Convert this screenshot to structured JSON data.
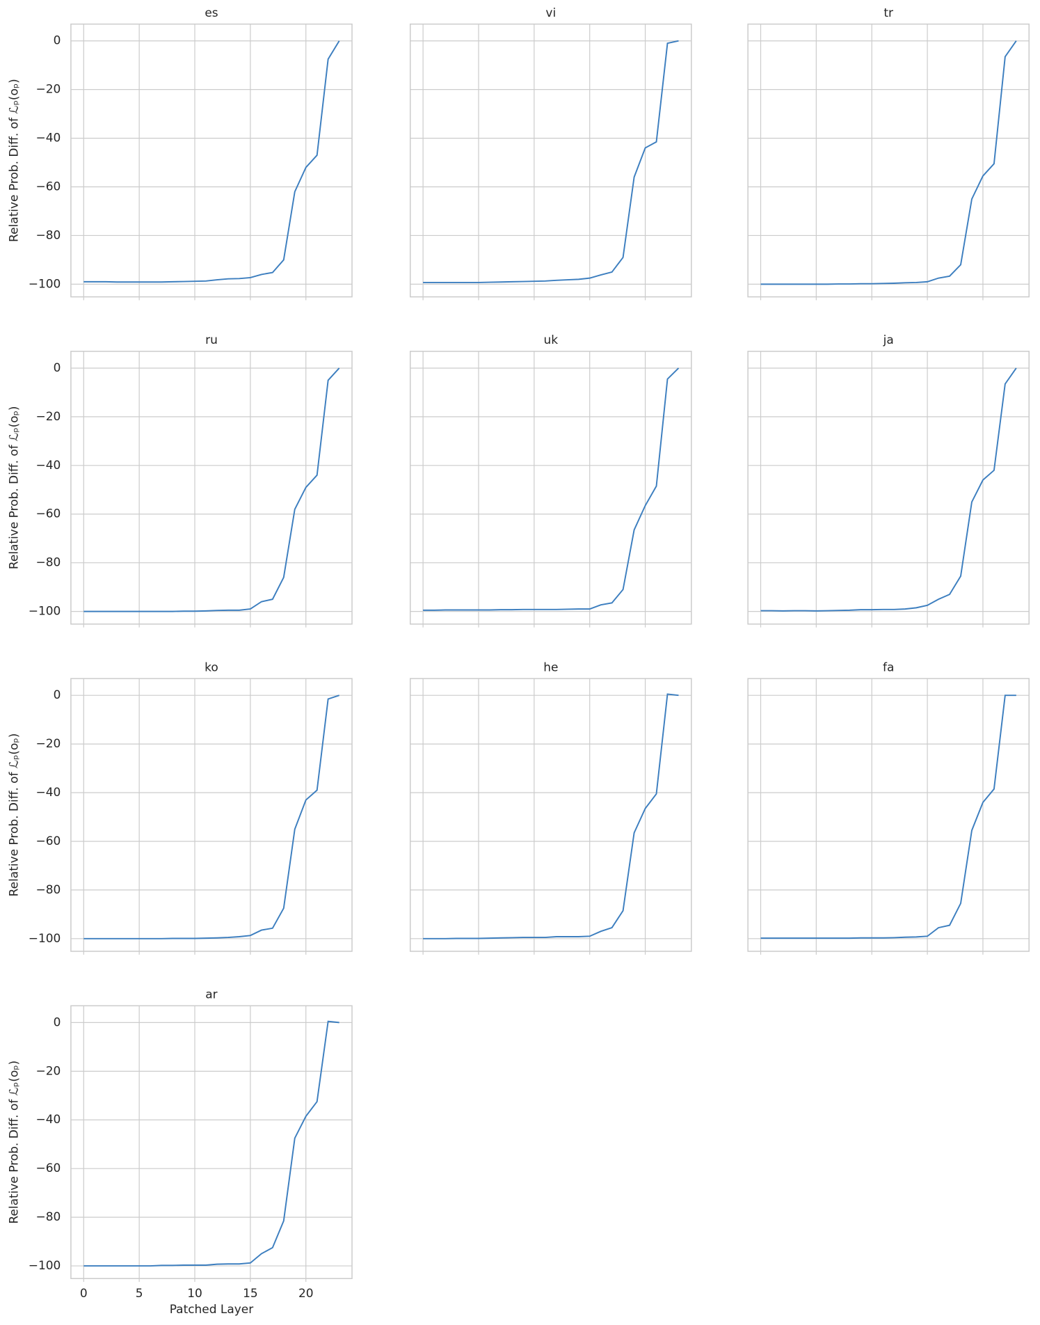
{
  "chart_data": [
    {
      "type": "line",
      "title": "es",
      "ylabel": "Relative Prob. Diff. of ℒₚ(oₚ)",
      "color": "#3c7ebf",
      "grid": true,
      "x": [
        0,
        1,
        2,
        3,
        4,
        5,
        6,
        7,
        8,
        9,
        10,
        11,
        12,
        13,
        14,
        15,
        16,
        17,
        18,
        19,
        20,
        21,
        22,
        23
      ],
      "values": [
        -99,
        -99,
        -99,
        -99.1,
        -99.1,
        -99.1,
        -99.1,
        -99.1,
        -99,
        -98.9,
        -98.8,
        -98.7,
        -98.2,
        -97.8,
        -97.7,
        -97.3,
        -96,
        -95.2,
        -90,
        -62,
        -52,
        -47,
        -7.5,
        0
      ],
      "xlim": [
        -1.15,
        24.15
      ],
      "ylim": [
        -105.2,
        6.9
      ],
      "xticks": [
        0,
        5,
        10,
        15,
        20
      ],
      "yticks": [
        {
          "value": 0,
          "label": "0"
        },
        {
          "value": -20,
          "label": "−20"
        },
        {
          "value": -40,
          "label": "−40"
        },
        {
          "value": -60,
          "label": "−60"
        },
        {
          "value": -80,
          "label": "−80"
        },
        {
          "value": -100,
          "label": "−100"
        }
      ]
    },
    {
      "type": "line",
      "title": "vi",
      "color": "#3c7ebf",
      "grid": true,
      "x": [
        0,
        1,
        2,
        3,
        4,
        5,
        6,
        7,
        8,
        9,
        10,
        11,
        12,
        13,
        14,
        15,
        16,
        17,
        18,
        19,
        20,
        21,
        22,
        23
      ],
      "values": [
        -99.3,
        -99.3,
        -99.3,
        -99.3,
        -99.3,
        -99.3,
        -99.2,
        -99.1,
        -99,
        -98.9,
        -98.8,
        -98.7,
        -98.4,
        -98.2,
        -98,
        -97.5,
        -96.2,
        -95,
        -89,
        -56,
        -44,
        -41.5,
        -1,
        0
      ],
      "xlim": [
        -1.15,
        24.15
      ],
      "ylim": [
        -105.2,
        6.9
      ],
      "xticks": [
        0,
        5,
        10,
        15,
        20
      ],
      "yticks": [
        {
          "value": 0,
          "label": "0"
        },
        {
          "value": -20,
          "label": "−20"
        },
        {
          "value": -40,
          "label": "−40"
        },
        {
          "value": -60,
          "label": "−60"
        },
        {
          "value": -80,
          "label": "−80"
        },
        {
          "value": -100,
          "label": "−100"
        }
      ]
    },
    {
      "type": "line",
      "title": "tr",
      "color": "#3c7ebf",
      "grid": true,
      "x": [
        0,
        1,
        2,
        3,
        4,
        5,
        6,
        7,
        8,
        9,
        10,
        11,
        12,
        13,
        14,
        15,
        16,
        17,
        18,
        19,
        20,
        21,
        22,
        23
      ],
      "values": [
        -100,
        -100,
        -100,
        -100,
        -100,
        -100,
        -100,
        -99.9,
        -99.9,
        -99.8,
        -99.8,
        -99.7,
        -99.6,
        -99.4,
        -99.3,
        -99,
        -97.5,
        -96.7,
        -92,
        -65,
        -55.5,
        -50.5,
        -6.5,
        0
      ],
      "xlim": [
        -1.15,
        24.15
      ],
      "ylim": [
        -105.2,
        6.9
      ],
      "xticks": [
        0,
        5,
        10,
        15,
        20
      ],
      "yticks": [
        {
          "value": 0,
          "label": "0"
        },
        {
          "value": -20,
          "label": "−20"
        },
        {
          "value": -40,
          "label": "−40"
        },
        {
          "value": -60,
          "label": "−60"
        },
        {
          "value": -80,
          "label": "−80"
        },
        {
          "value": -100,
          "label": "−100"
        }
      ]
    },
    {
      "type": "line",
      "title": "ru",
      "ylabel": "Relative Prob. Diff. of ℒₚ(oₚ)",
      "color": "#3c7ebf",
      "grid": true,
      "x": [
        0,
        1,
        2,
        3,
        4,
        5,
        6,
        7,
        8,
        9,
        10,
        11,
        12,
        13,
        14,
        15,
        16,
        17,
        18,
        19,
        20,
        21,
        22,
        23
      ],
      "values": [
        -100,
        -100,
        -100,
        -100,
        -100,
        -100,
        -100,
        -100,
        -100,
        -99.9,
        -99.9,
        -99.8,
        -99.6,
        -99.5,
        -99.5,
        -99,
        -96,
        -95,
        -86,
        -58,
        -49,
        -44,
        -5,
        0
      ],
      "xlim": [
        -1.15,
        24.15
      ],
      "ylim": [
        -105.2,
        6.9
      ],
      "xticks": [
        0,
        5,
        10,
        15,
        20
      ],
      "yticks": [
        {
          "value": 0,
          "label": "0"
        },
        {
          "value": -20,
          "label": "−20"
        },
        {
          "value": -40,
          "label": "−40"
        },
        {
          "value": -60,
          "label": "−60"
        },
        {
          "value": -80,
          "label": "−80"
        },
        {
          "value": -100,
          "label": "−100"
        }
      ]
    },
    {
      "type": "line",
      "title": "uk",
      "color": "#3c7ebf",
      "grid": true,
      "x": [
        0,
        1,
        2,
        3,
        4,
        5,
        6,
        7,
        8,
        9,
        10,
        11,
        12,
        13,
        14,
        15,
        16,
        17,
        18,
        19,
        20,
        21,
        22,
        23
      ],
      "values": [
        -99.5,
        -99.5,
        -99.4,
        -99.4,
        -99.4,
        -99.4,
        -99.4,
        -99.3,
        -99.3,
        -99.2,
        -99.2,
        -99.2,
        -99.2,
        -99.1,
        -99,
        -99,
        -97.3,
        -96.5,
        -91,
        -66.5,
        -56.5,
        -48.5,
        -4.5,
        0
      ],
      "xlim": [
        -1.15,
        24.15
      ],
      "ylim": [
        -105.2,
        6.9
      ],
      "xticks": [
        0,
        5,
        10,
        15,
        20
      ],
      "yticks": [
        {
          "value": 0,
          "label": "0"
        },
        {
          "value": -20,
          "label": "−20"
        },
        {
          "value": -40,
          "label": "−40"
        },
        {
          "value": -60,
          "label": "−60"
        },
        {
          "value": -80,
          "label": "−80"
        },
        {
          "value": -100,
          "label": "−100"
        }
      ]
    },
    {
      "type": "line",
      "title": "ja",
      "color": "#3c7ebf",
      "grid": true,
      "x": [
        0,
        1,
        2,
        3,
        4,
        5,
        6,
        7,
        8,
        9,
        10,
        11,
        12,
        13,
        14,
        15,
        16,
        17,
        18,
        19,
        20,
        21,
        22,
        23
      ],
      "values": [
        -99.7,
        -99.7,
        -99.8,
        -99.7,
        -99.7,
        -99.8,
        -99.7,
        -99.6,
        -99.5,
        -99.3,
        -99.3,
        -99.2,
        -99.2,
        -99,
        -98.5,
        -97.5,
        -95,
        -93,
        -85.5,
        -55,
        -46,
        -42,
        -6.5,
        0
      ],
      "xlim": [
        -1.15,
        24.15
      ],
      "ylim": [
        -105.2,
        6.9
      ],
      "xticks": [
        0,
        5,
        10,
        15,
        20
      ],
      "yticks": [
        {
          "value": 0,
          "label": "0"
        },
        {
          "value": -20,
          "label": "−20"
        },
        {
          "value": -40,
          "label": "−40"
        },
        {
          "value": -60,
          "label": "−60"
        },
        {
          "value": -80,
          "label": "−80"
        },
        {
          "value": -100,
          "label": "−100"
        }
      ]
    },
    {
      "type": "line",
      "title": "ko",
      "ylabel": "Relative Prob. Diff. of ℒₚ(oₚ)",
      "color": "#3c7ebf",
      "grid": true,
      "x": [
        0,
        1,
        2,
        3,
        4,
        5,
        6,
        7,
        8,
        9,
        10,
        11,
        12,
        13,
        14,
        15,
        16,
        17,
        18,
        19,
        20,
        21,
        22,
        23
      ],
      "values": [
        -100,
        -100,
        -100,
        -100,
        -100,
        -100,
        -100,
        -100,
        -99.9,
        -99.9,
        -99.9,
        -99.8,
        -99.7,
        -99.5,
        -99.2,
        -98.7,
        -96.5,
        -95.7,
        -87.5,
        -55,
        -43,
        -39,
        -1.5,
        0
      ],
      "xlim": [
        -1.15,
        24.15
      ],
      "ylim": [
        -105.2,
        6.9
      ],
      "xticks": [
        0,
        5,
        10,
        15,
        20
      ],
      "yticks": [
        {
          "value": 0,
          "label": "0"
        },
        {
          "value": -20,
          "label": "−20"
        },
        {
          "value": -40,
          "label": "−40"
        },
        {
          "value": -60,
          "label": "−60"
        },
        {
          "value": -80,
          "label": "−80"
        },
        {
          "value": -100,
          "label": "−100"
        }
      ]
    },
    {
      "type": "line",
      "title": "he",
      "color": "#3c7ebf",
      "grid": true,
      "x": [
        0,
        1,
        2,
        3,
        4,
        5,
        6,
        7,
        8,
        9,
        10,
        11,
        12,
        13,
        14,
        15,
        16,
        17,
        18,
        19,
        20,
        21,
        22,
        23
      ],
      "values": [
        -100,
        -100,
        -100,
        -99.9,
        -99.9,
        -99.9,
        -99.8,
        -99.7,
        -99.6,
        -99.5,
        -99.5,
        -99.5,
        -99.2,
        -99.2,
        -99.2,
        -99,
        -97,
        -95.5,
        -88.5,
        -56.5,
        -46.5,
        -40.5,
        0.5,
        0
      ],
      "xlim": [
        -1.15,
        24.15
      ],
      "ylim": [
        -105.2,
        6.9
      ],
      "xticks": [
        0,
        5,
        10,
        15,
        20
      ],
      "yticks": [
        {
          "value": 0,
          "label": "0"
        },
        {
          "value": -20,
          "label": "−20"
        },
        {
          "value": -40,
          "label": "−40"
        },
        {
          "value": -60,
          "label": "−60"
        },
        {
          "value": -80,
          "label": "−80"
        },
        {
          "value": -100,
          "label": "−100"
        }
      ]
    },
    {
      "type": "line",
      "title": "fa",
      "color": "#3c7ebf",
      "grid": true,
      "x": [
        0,
        1,
        2,
        3,
        4,
        5,
        6,
        7,
        8,
        9,
        10,
        11,
        12,
        13,
        14,
        15,
        16,
        17,
        18,
        19,
        20,
        21,
        22,
        23
      ],
      "values": [
        -99.8,
        -99.8,
        -99.8,
        -99.8,
        -99.8,
        -99.8,
        -99.8,
        -99.8,
        -99.8,
        -99.7,
        -99.7,
        -99.7,
        -99.6,
        -99.4,
        -99.3,
        -99,
        -95.5,
        -94.5,
        -85.5,
        -55.5,
        -44,
        -38.5,
        0,
        0
      ],
      "xlim": [
        -1.15,
        24.15
      ],
      "ylim": [
        -105.2,
        6.9
      ],
      "xticks": [
        0,
        5,
        10,
        15,
        20
      ],
      "yticks": [
        {
          "value": 0,
          "label": "0"
        },
        {
          "value": -20,
          "label": "−20"
        },
        {
          "value": -40,
          "label": "−40"
        },
        {
          "value": -60,
          "label": "−60"
        },
        {
          "value": -80,
          "label": "−80"
        },
        {
          "value": -100,
          "label": "−100"
        }
      ]
    },
    {
      "type": "line",
      "title": "ar",
      "ylabel": "Relative Prob. Diff. of ℒₚ(oₚ)",
      "xlabel": "Patched Layer",
      "color": "#3c7ebf",
      "grid": true,
      "x": [
        0,
        1,
        2,
        3,
        4,
        5,
        6,
        7,
        8,
        9,
        10,
        11,
        12,
        13,
        14,
        15,
        16,
        17,
        18,
        19,
        20,
        21,
        22,
        23
      ],
      "values": [
        -100,
        -100,
        -100,
        -100,
        -100,
        -100,
        -100,
        -99.8,
        -99.8,
        -99.7,
        -99.7,
        -99.7,
        -99.3,
        -99.2,
        -99.2,
        -98.8,
        -95,
        -92.5,
        -81.5,
        -47.5,
        -38.5,
        -32.5,
        0.5,
        0
      ],
      "xlim": [
        -1.15,
        24.15
      ],
      "ylim": [
        -105.2,
        6.9
      ],
      "xticks": [
        0,
        5,
        10,
        15,
        20
      ],
      "yticks": [
        {
          "value": 0,
          "label": "0"
        },
        {
          "value": -20,
          "label": "−20"
        },
        {
          "value": -40,
          "label": "−40"
        },
        {
          "value": -60,
          "label": "−60"
        },
        {
          "value": -80,
          "label": "−80"
        },
        {
          "value": -100,
          "label": "−100"
        }
      ]
    }
  ]
}
